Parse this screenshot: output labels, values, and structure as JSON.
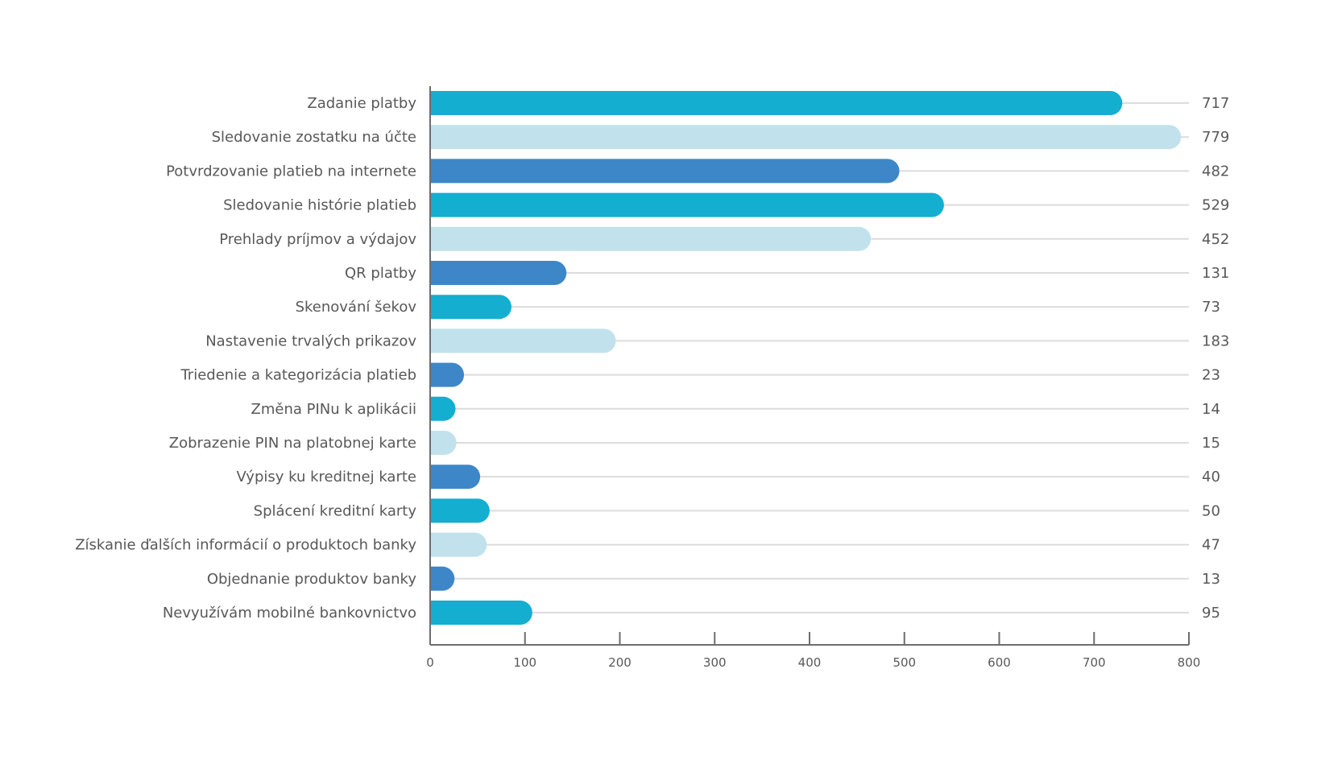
{
  "chart_data": {
    "type": "bar",
    "orientation": "horizontal",
    "title": "",
    "xlabel": "",
    "ylabel": "",
    "xlim": [
      0,
      800
    ],
    "x_ticks": [
      0,
      100,
      200,
      300,
      400,
      500,
      600,
      700,
      800
    ],
    "grid": false,
    "legend": "none",
    "categories": [
      "Zadanie platby",
      "Sledovanie zostatku na účte",
      "Potvrdzovanie platieb na internete",
      "Sledovanie histórie platieb",
      "Prehlady príjmov a výdajov",
      "QR platby",
      "Skenování šekov",
      "Nastavenie trvalých prikazov",
      "Triedenie a kategorizácia platieb",
      "Změna PINu k aplikácii",
      "Zobrazenie PIN na platobnej karte",
      "Výpisy ku kreditnej karte",
      "Splácení kreditní karty",
      "Získanie ďalších informácií o produktoch banky",
      "Objednanie produktov banky",
      "Nevyužívám mobilné bankovnictvo"
    ],
    "values": [
      717,
      779,
      482,
      529,
      452,
      131,
      73,
      183,
      23,
      14,
      15,
      40,
      50,
      47,
      13,
      95
    ],
    "bar_colors": [
      "#14aed0",
      "#c1e2ec",
      "#3d87c8"
    ]
  },
  "colors": {
    "text": "#58585a",
    "axis": "#6d6d6f",
    "leader_line": "#dcdcdc"
  }
}
